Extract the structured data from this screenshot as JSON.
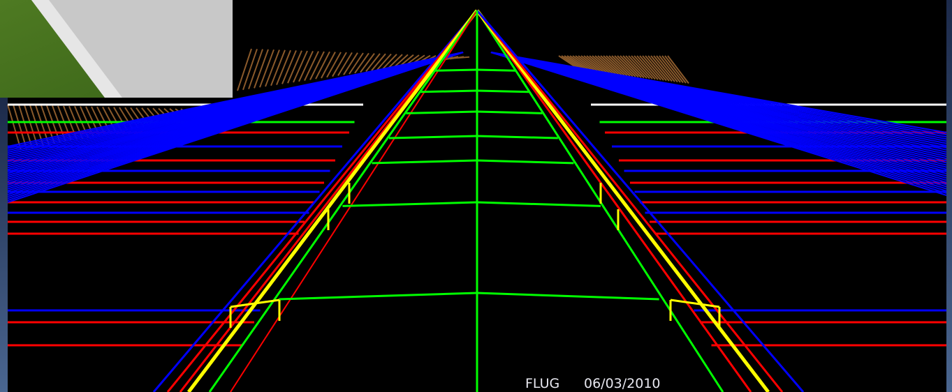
{
  "footer": {
    "label": "FLUG",
    "date": "06/03/2010"
  }
}
